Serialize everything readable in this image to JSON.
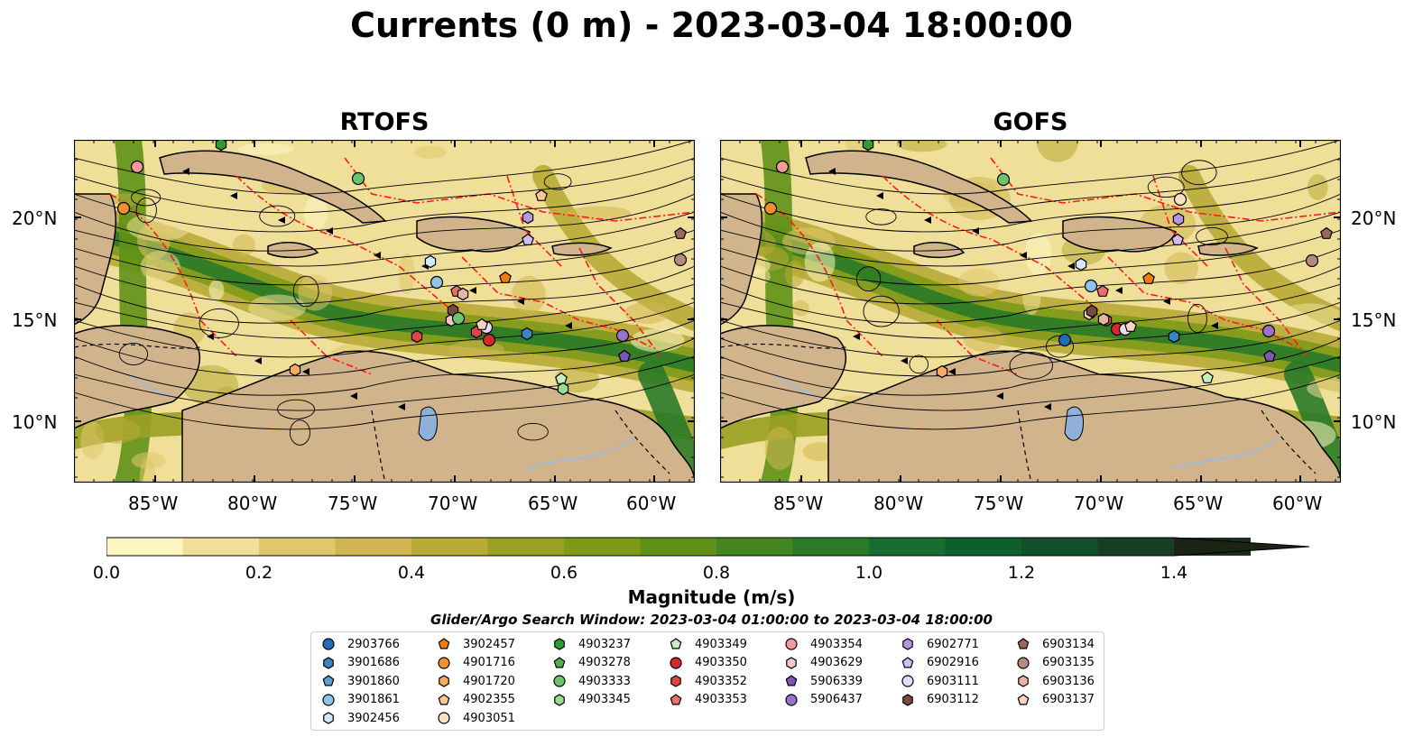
{
  "title": "Currents (0 m) - 2023-03-04 18:00:00",
  "panels": [
    {
      "title": "RTOFS"
    },
    {
      "title": "GOFS"
    }
  ],
  "lat_labels": [
    "20°N",
    "15°N",
    "10°N"
  ],
  "lon_labels": [
    "85°W",
    "80°W",
    "75°W",
    "70°W",
    "65°W",
    "60°W"
  ],
  "colorbar": {
    "label": "Magnitude (m/s)",
    "ticks": [
      "0.0",
      "0.2",
      "0.4",
      "0.6",
      "0.8",
      "1.0",
      "1.2",
      "1.4"
    ],
    "colors": [
      "#fdf6c3",
      "#f0df98",
      "#e0c76e",
      "#d0b652",
      "#b7aa36",
      "#9aa021",
      "#7e9a18",
      "#5f9118",
      "#438521",
      "#2a7a28",
      "#166d2f",
      "#0f5e2e",
      "#11502b",
      "#173f24",
      "#1a2f1b",
      "#1b2216"
    ]
  },
  "search_window": "Glider/Argo Search Window: 2023-03-04 01:00:00 to 2023-03-04 18:00:00",
  "legend": [
    {
      "label": "2903766",
      "shape": "circle",
      "color": "#1f6fb4"
    },
    {
      "label": "3901686",
      "shape": "hexagon",
      "color": "#3b84c4"
    },
    {
      "label": "3901860",
      "shape": "pentagon",
      "color": "#5b9fd6"
    },
    {
      "label": "3901861",
      "shape": "circle",
      "color": "#8fc3ec"
    },
    {
      "label": "3902456",
      "shape": "hexagon",
      "color": "#d3e8fb"
    },
    {
      "label": "3902457",
      "shape": "pentagon",
      "color": "#f07d10"
    },
    {
      "label": "4901716",
      "shape": "circle",
      "color": "#f58f33"
    },
    {
      "label": "4901720",
      "shape": "hexagon",
      "color": "#f9aa5f"
    },
    {
      "label": "4902355",
      "shape": "pentagon",
      "color": "#fcc78f"
    },
    {
      "label": "4903051",
      "shape": "circle",
      "color": "#fde0c0"
    },
    {
      "label": "4903237",
      "shape": "hexagon",
      "color": "#2f9c32"
    },
    {
      "label": "4903278",
      "shape": "pentagon",
      "color": "#4db04a"
    },
    {
      "label": "4903333",
      "shape": "circle",
      "color": "#6cc46b"
    },
    {
      "label": "4903345",
      "shape": "hexagon",
      "color": "#98dc8f"
    },
    {
      "label": "4903349",
      "shape": "pentagon",
      "color": "#c6f0bf"
    },
    {
      "label": "4903350",
      "shape": "circle",
      "color": "#d62a2a"
    },
    {
      "label": "4903352",
      "shape": "hexagon",
      "color": "#e04545"
    },
    {
      "label": "4903353",
      "shape": "pentagon",
      "color": "#ee6d6d"
    },
    {
      "label": "4903354",
      "shape": "circle",
      "color": "#f49a9a"
    },
    {
      "label": "4903629",
      "shape": "hexagon",
      "color": "#f9c3c3"
    },
    {
      "label": "5906339",
      "shape": "pentagon",
      "color": "#7d57b5"
    },
    {
      "label": "5906437",
      "shape": "circle",
      "color": "#9a73c9"
    },
    {
      "label": "6902771",
      "shape": "hexagon",
      "color": "#b795e0"
    },
    {
      "label": "6902916",
      "shape": "pentagon",
      "color": "#d2bbf0"
    },
    {
      "label": "6903111",
      "shape": "circle",
      "color": "#e8dafb"
    },
    {
      "label": "6903112",
      "shape": "hexagon",
      "color": "#7a4a3c"
    },
    {
      "label": "6903134",
      "shape": "pentagon",
      "color": "#98685a"
    },
    {
      "label": "6903135",
      "shape": "circle",
      "color": "#b88a7c"
    },
    {
      "label": "6903136",
      "shape": "hexagon",
      "color": "#e6b6a2"
    },
    {
      "label": "6903137",
      "shape": "pentagon",
      "color": "#f8d3c4"
    }
  ]
}
